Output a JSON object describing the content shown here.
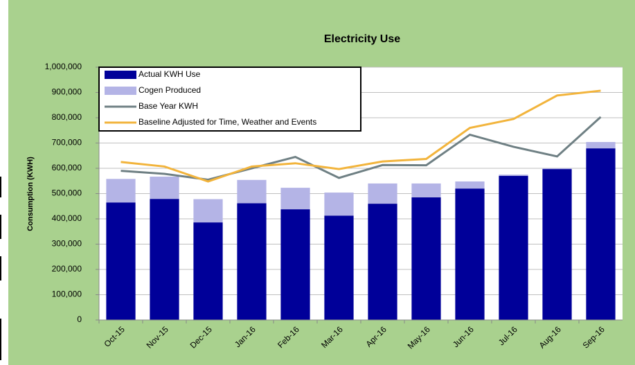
{
  "chart_data": {
    "type": "bar",
    "stacked": true,
    "title": "Electricity Use",
    "y_label": "Consumption (KWH)",
    "categories": [
      "Oct-15",
      "Nov-15",
      "Dec-15",
      "Jan-16",
      "Feb-16",
      "Mar-16",
      "Apr-16",
      "May-16",
      "Jun-16",
      "Jul-16",
      "Aug-16",
      "Sep-16"
    ],
    "series": [
      {
        "name": "Actual KWH Use",
        "type": "bar",
        "color": "#000099",
        "values": [
          465000,
          479000,
          386000,
          462000,
          438000,
          413000,
          460000,
          485000,
          520000,
          570000,
          597000,
          679000
        ]
      },
      {
        "name": "Cogen Produced",
        "type": "bar",
        "color": "#b4b4e6",
        "values": [
          93000,
          88000,
          92000,
          92000,
          85000,
          91000,
          80000,
          55000,
          28000,
          5000,
          3000,
          25000
        ]
      },
      {
        "name": "Base Year KWH",
        "type": "line",
        "color": "#6f8084",
        "values": [
          590000,
          578000,
          555000,
          600000,
          645000,
          562000,
          613000,
          612000,
          733000,
          685000,
          647000,
          803000
        ]
      },
      {
        "name": "Baseline Adjusted for Time, Weather and Events",
        "type": "line",
        "color": "#f2b43c",
        "values": [
          625000,
          607000,
          548000,
          607000,
          620000,
          597000,
          627000,
          637000,
          760000,
          795000,
          888000,
          907000
        ]
      }
    ],
    "ylim": [
      0,
      1000000
    ],
    "yticks": [
      0,
      {
        "value": 100000,
        "label": "100,000"
      },
      {
        "value": 200000,
        "label": "200,000"
      },
      {
        "value": 300000,
        "label": "300,000"
      },
      {
        "value": 400000,
        "label": "400,000"
      },
      {
        "value": 500000,
        "label": "500,000"
      },
      {
        "value": 600000,
        "label": "600,000"
      },
      {
        "value": 700000,
        "label": "700,000"
      },
      {
        "value": 800000,
        "label": "800,000"
      },
      {
        "value": 900000,
        "label": "900,000"
      },
      {
        "value": 1000000,
        "label": "1,000,000"
      }
    ],
    "grid": true,
    "legend": "top-left"
  }
}
